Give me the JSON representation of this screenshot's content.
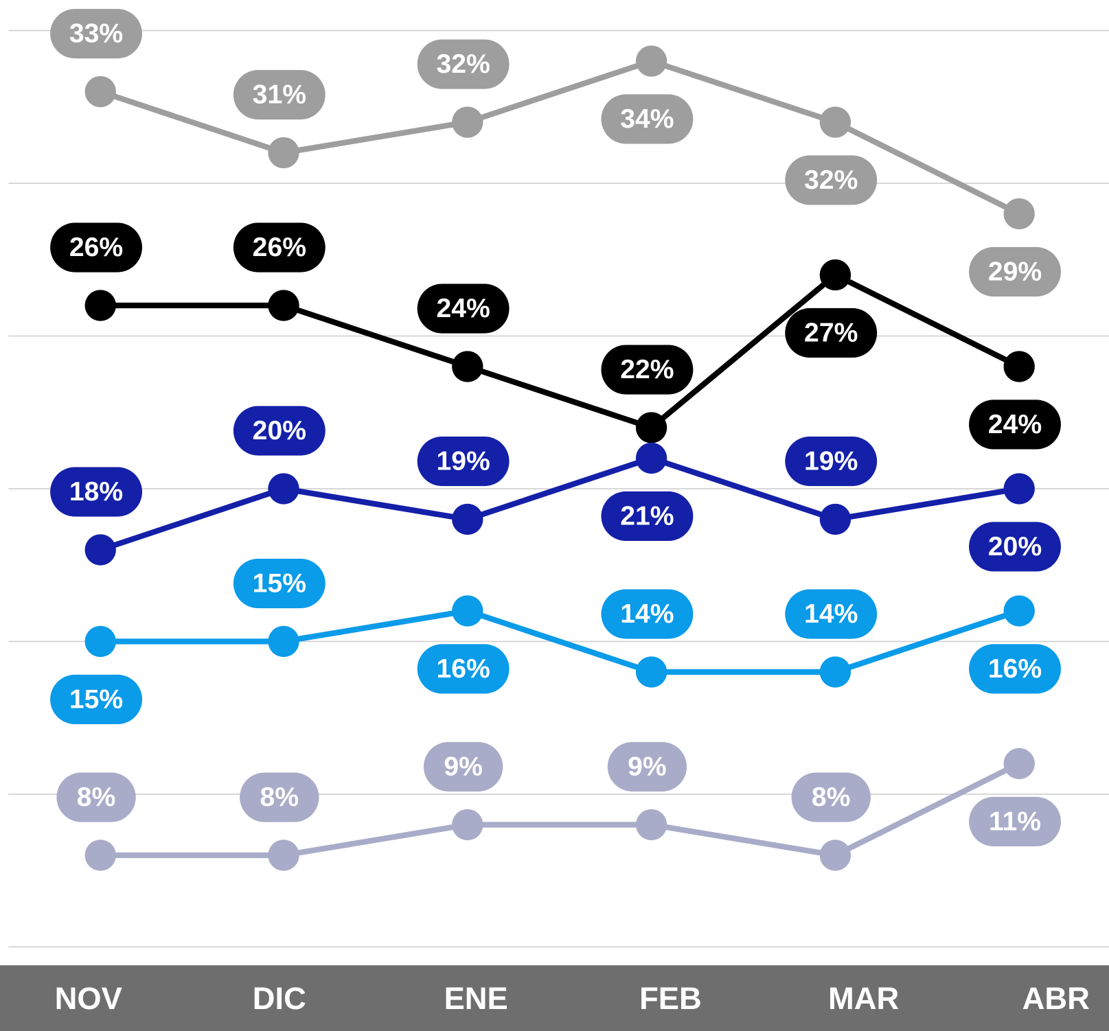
{
  "chart_data": {
    "type": "line",
    "categories": [
      "NOV",
      "DIC",
      "ENE",
      "FEB",
      "MAR",
      "ABR"
    ],
    "series": [
      {
        "color": "#9e9e9e",
        "values": [
          33,
          31,
          32,
          34,
          32,
          29
        ],
        "value_labels": [
          "33%",
          "31%",
          "32%",
          "34%",
          "32%",
          "29%"
        ]
      },
      {
        "color": "#000000",
        "values": [
          26,
          26,
          24,
          22,
          27,
          24
        ],
        "value_labels": [
          "26%",
          "26%",
          "24%",
          "22%",
          "27%",
          "24%"
        ]
      },
      {
        "color": "#1420a8",
        "values": [
          18,
          20,
          19,
          21,
          19,
          20
        ],
        "value_labels": [
          "18%",
          "20%",
          "19%",
          "21%",
          "19%",
          "20%"
        ]
      },
      {
        "color": "#0a9be9",
        "values": [
          15,
          15,
          16,
          14,
          14,
          16
        ],
        "value_labels": [
          "15%",
          "15%",
          "16%",
          "14%",
          "14%",
          "16%"
        ]
      },
      {
        "color": "#a9acc8",
        "values": [
          8,
          8,
          9,
          9,
          8,
          11
        ],
        "value_labels": [
          "8%",
          "8%",
          "9%",
          "9%",
          "8%",
          "11%"
        ]
      }
    ],
    "ylim": [
      4.4,
      36
    ],
    "yticks": [
      5,
      10,
      15,
      20,
      25,
      30,
      35
    ],
    "grid": true
  }
}
